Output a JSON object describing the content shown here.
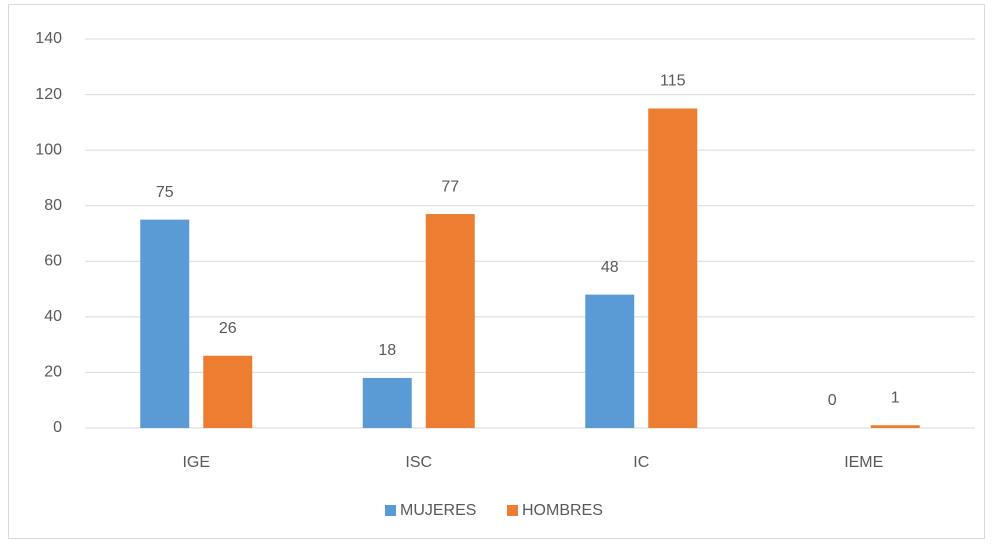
{
  "chart_data": {
    "type": "bar",
    "categories": [
      "IGE",
      "ISC",
      "IC",
      "IEME"
    ],
    "series": [
      {
        "name": "MUJERES",
        "color": "#5b9bd5",
        "values": [
          75,
          18,
          48,
          0
        ]
      },
      {
        "name": "HOMBRES",
        "color": "#ed7d31",
        "values": [
          26,
          77,
          115,
          1
        ]
      }
    ],
    "ylim": [
      0,
      140
    ],
    "yticks": [
      0,
      20,
      40,
      60,
      80,
      100,
      120,
      140
    ],
    "grid": true,
    "legend": "bottom"
  }
}
